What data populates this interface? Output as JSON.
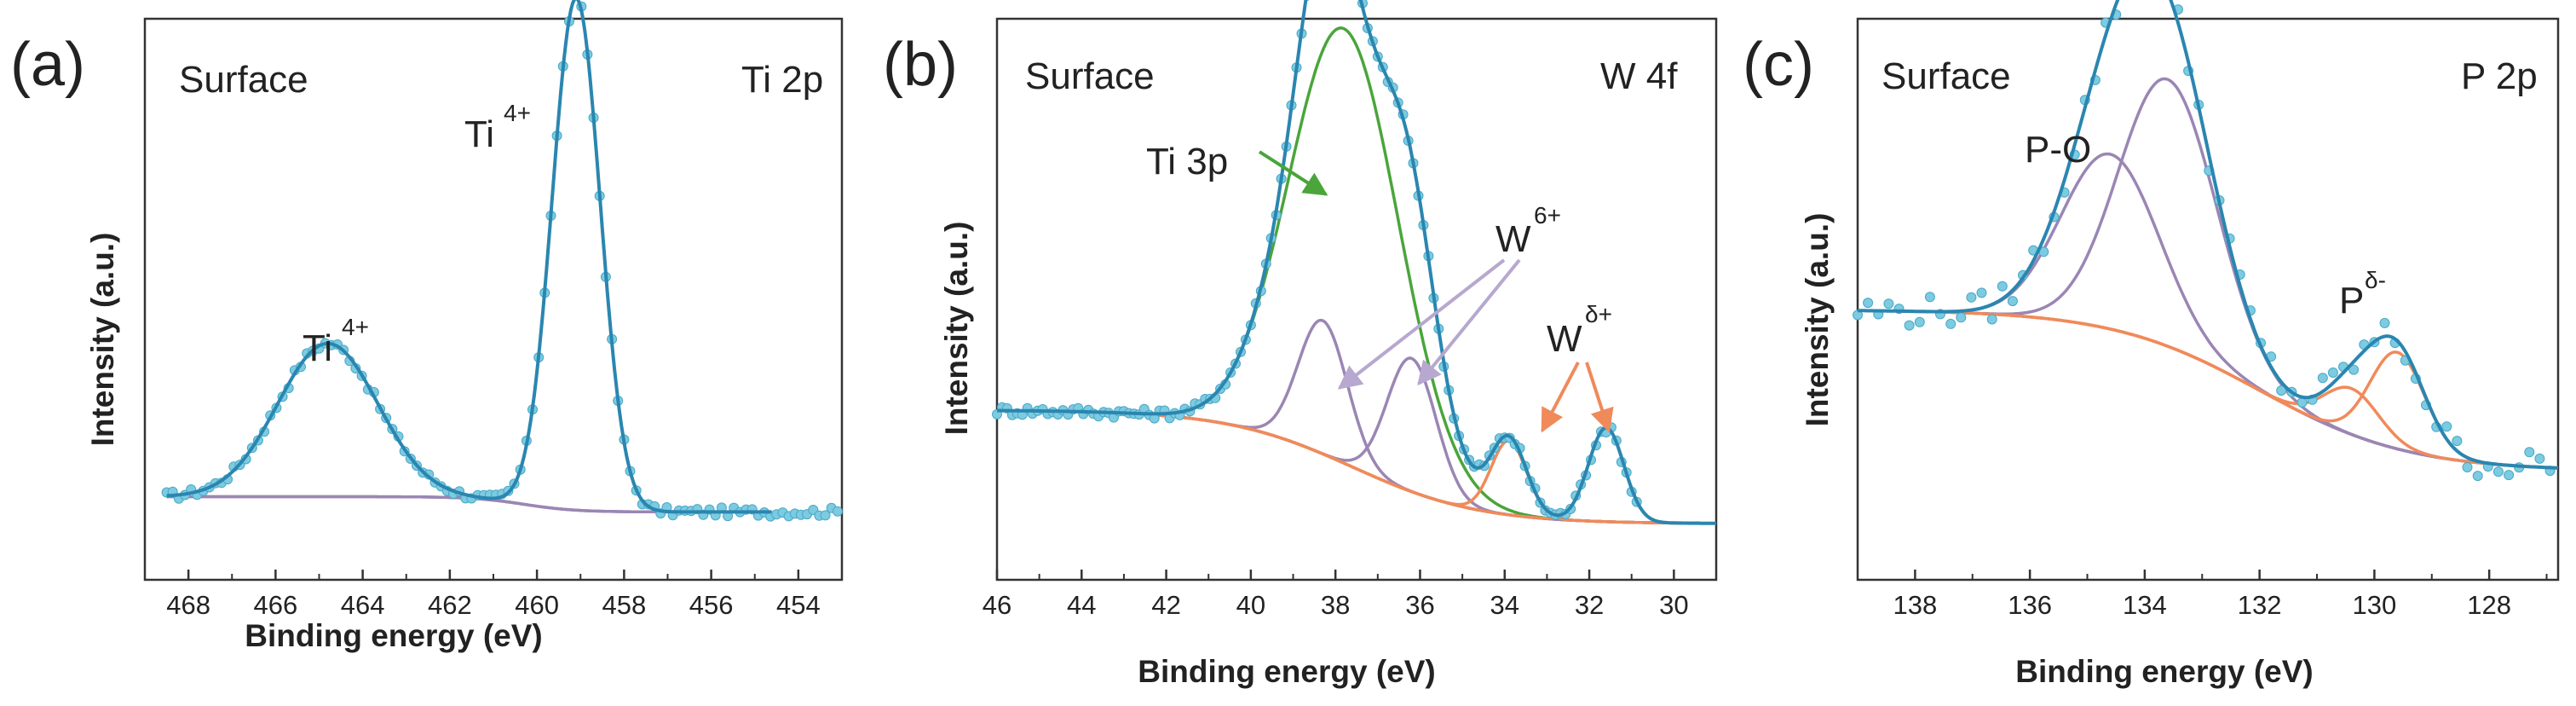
{
  "figure": {
    "type": "XPS high-resolution spectra, three panels"
  },
  "colors": {
    "data_points": "#7ccbe0",
    "data_points_edge": "#4aa8c8",
    "envelope": "#2a86b0",
    "ti_peak": "#9a86b4",
    "w6_peak": "#9a86b4",
    "ti3p_peak": "#4aa53b",
    "wdelta_peak": "#f08a5a",
    "p_o_peak": "#9a86b4",
    "pdelta_peak": "#f08a5a",
    "background": "#9a86b4",
    "background_orange": "#f08a5a",
    "axis": "#333333",
    "arrow_purple": "#b7a8cf",
    "arrow_green": "#4aa53b",
    "arrow_orange": "#f08a5a"
  },
  "chart_data": [
    {
      "panel": "(a)",
      "type": "line",
      "title": "Ti 2p",
      "subtitle": "Surface",
      "xlabel": "Binding energy (eV)",
      "ylabel": "Intensity (a.u.)",
      "xlim": [
        469,
        453
      ],
      "ylim": [
        0,
        1
      ],
      "xticks": [
        "468",
        "466",
        "464",
        "462",
        "460",
        "458",
        "456",
        "454"
      ],
      "peaks": [
        {
          "label": "Ti",
          "sup": "4+",
          "center": 464.8,
          "amp": 0.35,
          "sigma": 1.15,
          "color_key": "ti_peak"
        },
        {
          "label": "Ti",
          "sup": "4+",
          "center": 459.1,
          "amp": 1.17,
          "sigma": 0.55,
          "color_key": "ti_peak"
        }
      ],
      "baseline": {
        "type": "step",
        "low": 0.155,
        "high": 0.19,
        "center": 460.3,
        "width": 0.6,
        "range": [
          468.5,
          454.6
        ]
      },
      "measured_range": [
        468.5,
        453.0
      ],
      "point_step": 0.14,
      "noise": 0.01
    },
    {
      "panel": "(b)",
      "type": "line",
      "title": "W 4f",
      "subtitle": "Surface",
      "xlabel": "Binding energy (eV)",
      "ylabel": "Intensity (a.u.)",
      "xlim": [
        46,
        29
      ],
      "ylim": [
        0,
        1
      ],
      "xticks": [
        "46",
        "44",
        "42",
        "40",
        "38",
        "36",
        "34",
        "32",
        "30"
      ],
      "peaks": [
        {
          "label": "Ti 3p",
          "sup": "",
          "center": 37.8,
          "amp": 0.88,
          "sigma": 1.3,
          "color_key": "ti3p_peak"
        },
        {
          "label": "W",
          "sup": "6+",
          "center": 38.3,
          "amp": 0.27,
          "sigma": 0.58,
          "color_key": "w6_peak"
        },
        {
          "label": "W",
          "sup": "6+",
          "center": 36.2,
          "amp": 0.27,
          "sigma": 0.58,
          "color_key": "w6_peak"
        },
        {
          "label": "W",
          "sup": "δ+",
          "center": 33.9,
          "amp": 0.15,
          "sigma": 0.42,
          "color_key": "wdelta_peak"
        },
        {
          "label": "W",
          "sup": "δ+",
          "center": 31.6,
          "amp": 0.19,
          "sigma": 0.42,
          "color_key": "wdelta_peak"
        }
      ],
      "baseline": {
        "type": "step",
        "low": 0.01,
        "high": 0.24,
        "center": 37.6,
        "width": 1.5,
        "range": [
          46,
          29
        ]
      },
      "measured_range": [
        46.0,
        30.8
      ],
      "point_step": 0.12,
      "noise": 0.01
    },
    {
      "panel": "(c)",
      "type": "line",
      "title": "P 2p",
      "subtitle": "Surface",
      "xlabel": "Binding energy (eV)",
      "ylabel": "Intensity (a.u.)",
      "xlim": [
        139,
        126.8
      ],
      "ylim": [
        0,
        1
      ],
      "xticks": [
        "138",
        "136",
        "134",
        "132",
        "130",
        "128"
      ],
      "peaks": [
        {
          "label": "P-O",
          "sup": "",
          "center": 133.6,
          "amp": 0.58,
          "sigma": 0.85,
          "color_key": "p_o_peak"
        },
        {
          "label": "P-O",
          "sup": "",
          "center": 134.6,
          "amp": 0.38,
          "sigma": 0.85,
          "color_key": "p_o_peak"
        },
        {
          "label": "P",
          "sup": "δ-",
          "center": 129.6,
          "amp": 0.21,
          "sigma": 0.48,
          "color_key": "pdelta_peak"
        },
        {
          "label": "P",
          "sup": "δ-",
          "center": 130.4,
          "amp": 0.1,
          "sigma": 0.48,
          "color_key": "pdelta_peak"
        }
      ],
      "baseline": {
        "type": "step",
        "low": 0.07,
        "high": 0.42,
        "center": 132.0,
        "width": 1.3,
        "range": [
          139,
          126.8
        ]
      },
      "measured_range": [
        139.0,
        126.8
      ],
      "point_step": 0.18,
      "noise": 0.035
    }
  ]
}
